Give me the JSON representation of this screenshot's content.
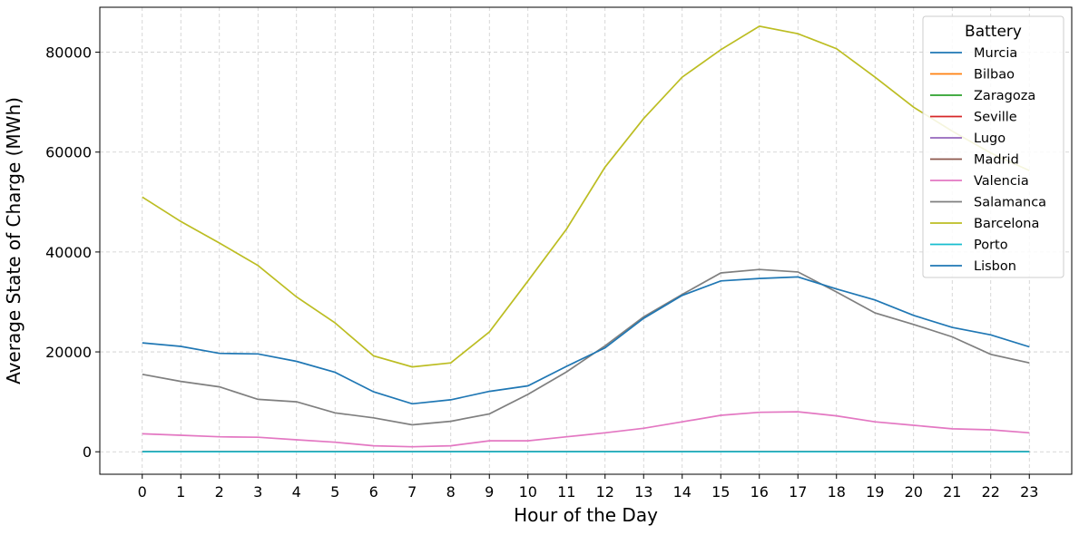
{
  "chart_data": {
    "type": "line",
    "title": "",
    "xlabel": "Hour of the Day",
    "ylabel": "Average State of Charge (MWh)",
    "x": [
      0,
      1,
      2,
      3,
      4,
      5,
      6,
      7,
      8,
      9,
      10,
      11,
      12,
      13,
      14,
      15,
      16,
      17,
      18,
      19,
      20,
      21,
      22,
      23
    ],
    "x_tick_labels": [
      "0",
      "1",
      "2",
      "3",
      "4",
      "5",
      "6",
      "7",
      "8",
      "9",
      "10",
      "11",
      "12",
      "13",
      "14",
      "15",
      "16",
      "17",
      "18",
      "19",
      "20",
      "21",
      "22",
      "23"
    ],
    "xlim": [
      -1.1,
      24.1
    ],
    "ylim": [
      -4500,
      89000
    ],
    "y_ticks": [
      0,
      20000,
      40000,
      60000,
      80000
    ],
    "y_tick_labels": [
      "0",
      "20000",
      "40000",
      "60000",
      "80000"
    ],
    "grid": true,
    "legend": {
      "title": "Battery",
      "placement": "top-right"
    },
    "series": [
      {
        "name": "Murcia",
        "color": "#1f77b4",
        "values": [
          0,
          0,
          0,
          0,
          0,
          0,
          0,
          0,
          0,
          0,
          0,
          0,
          0,
          0,
          0,
          0,
          0,
          0,
          0,
          0,
          0,
          0,
          0,
          0
        ]
      },
      {
        "name": "Bilbao",
        "color": "#ff7f0e",
        "values": [
          0,
          0,
          0,
          0,
          0,
          0,
          0,
          0,
          0,
          0,
          0,
          0,
          0,
          0,
          0,
          0,
          0,
          0,
          0,
          0,
          0,
          0,
          0,
          0
        ]
      },
      {
        "name": "Zaragoza",
        "color": "#2ca02c",
        "values": [
          0,
          0,
          0,
          0,
          0,
          0,
          0,
          0,
          0,
          0,
          0,
          0,
          0,
          0,
          0,
          0,
          0,
          0,
          0,
          0,
          0,
          0,
          0,
          0
        ]
      },
      {
        "name": "Seville",
        "color": "#d62728",
        "values": [
          0,
          0,
          0,
          0,
          0,
          0,
          0,
          0,
          0,
          0,
          0,
          0,
          0,
          0,
          0,
          0,
          0,
          0,
          0,
          0,
          0,
          0,
          0,
          0
        ]
      },
      {
        "name": "Lugo",
        "color": "#9467bd",
        "values": [
          0,
          0,
          0,
          0,
          0,
          0,
          0,
          0,
          0,
          0,
          0,
          0,
          0,
          0,
          0,
          0,
          0,
          0,
          0,
          0,
          0,
          0,
          0,
          0
        ]
      },
      {
        "name": "Madrid",
        "color": "#8c564b",
        "values": [
          0,
          0,
          0,
          0,
          0,
          0,
          0,
          0,
          0,
          0,
          0,
          0,
          0,
          0,
          0,
          0,
          0,
          0,
          0,
          0,
          0,
          0,
          0,
          0
        ]
      },
      {
        "name": "Valencia",
        "color": "#e377c2",
        "values": [
          3600,
          3300,
          3000,
          2900,
          2400,
          1900,
          1200,
          1000,
          1200,
          2200,
          2200,
          3000,
          3800,
          4700,
          6000,
          7300,
          7900,
          8000,
          7200,
          6000,
          5300,
          4600,
          4400,
          3800
        ]
      },
      {
        "name": "Salamanca",
        "color": "#7f7f7f",
        "values": [
          15500,
          14100,
          13000,
          10500,
          10000,
          7800,
          6800,
          5400,
          6100,
          7600,
          11500,
          16000,
          21200,
          27000,
          31500,
          35800,
          36500,
          36000,
          32000,
          27800,
          25500,
          23000,
          19500,
          17800
        ]
      },
      {
        "name": "Barcelona",
        "color": "#bcbd22",
        "values": [
          51000,
          46100,
          41800,
          37300,
          31000,
          25800,
          19200,
          17000,
          17800,
          24000,
          34200,
          44600,
          57000,
          66700,
          75000,
          80500,
          85200,
          83700,
          80700,
          75000,
          69000,
          64200,
          59800,
          56300
        ]
      },
      {
        "name": "Porto",
        "color": "#17becf",
        "values": [
          0,
          0,
          0,
          0,
          0,
          0,
          0,
          0,
          0,
          0,
          0,
          0,
          0,
          0,
          0,
          0,
          0,
          0,
          0,
          0,
          0,
          0,
          0,
          0
        ]
      },
      {
        "name": "Lisbon",
        "color": "#1f77b4",
        "values": [
          21800,
          21100,
          19700,
          19600,
          18100,
          15900,
          12000,
          9600,
          10400,
          12100,
          13200,
          17100,
          20800,
          26700,
          31300,
          34200,
          34700,
          35000,
          32600,
          30400,
          27300,
          24900,
          23400,
          21000
        ]
      }
    ]
  }
}
